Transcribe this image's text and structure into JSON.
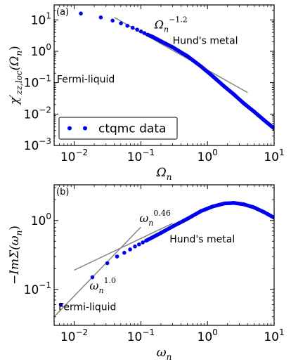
{
  "chart_data": [
    {
      "panel_label": "(a)",
      "type": "scatter",
      "xscale": "log",
      "yscale": "log",
      "xlim": [
        0.005,
        10
      ],
      "ylim": [
        0.001,
        30
      ],
      "x_ticks": [
        {
          "value": 0.01,
          "base": "10",
          "exp": "−2"
        },
        {
          "value": 0.1,
          "base": "10",
          "exp": "−1"
        },
        {
          "value": 1,
          "base": "10",
          "exp": "0"
        },
        {
          "value": 10,
          "base": "10",
          "exp": "1"
        }
      ],
      "y_ticks": [
        {
          "value": 0.001,
          "base": "10",
          "exp": "−3"
        },
        {
          "value": 0.01,
          "base": "10",
          "exp": "−2"
        },
        {
          "value": 0.1,
          "base": "10",
          "exp": "−1"
        },
        {
          "value": 1,
          "base": "10",
          "exp": "0"
        },
        {
          "value": 10,
          "base": "10",
          "exp": "1"
        }
      ],
      "xlabel": "Ω",
      "xlabel_sub": "n",
      "ylabel": "χ′",
      "ylabel_sub": "zz,loc",
      "ylabel_arg": "(Ω",
      "ylabel_arg_sub": "n",
      "ylabel_close": ")",
      "series": [
        {
          "name": "ctqmc data",
          "color": "#0000ee",
          "x": [
            0.0126,
            0.0251,
            0.0377,
            0.0503,
            0.0628,
            0.0754,
            0.088,
            0.1005,
            0.113,
            0.126,
            0.15,
            0.2,
            0.3,
            0.5,
            0.8,
            1.2,
            1.8,
            2.5,
            3.5,
            5,
            7,
            10
          ],
          "y": [
            16,
            12,
            9.5,
            7.8,
            6.5,
            5.6,
            4.9,
            4.3,
            3.8,
            3.4,
            2.9,
            2.1,
            1.35,
            0.7,
            0.33,
            0.16,
            0.075,
            0.042,
            0.022,
            0.012,
            0.0065,
            0.0035
          ]
        }
      ],
      "fit_lines": [
        {
          "color": "#808080",
          "x": [
            0.04,
            4.0
          ],
          "y": [
            12,
            0.0483
          ]
        }
      ],
      "annotations": [
        {
          "text": "Ω",
          "sub": "n",
          "sup": "−1.2",
          "x": 0.16,
          "y": 5.3
        },
        {
          "text": "Hund's metal",
          "x": 0.3,
          "y": 1.7
        },
        {
          "text": "Fermi-liquid",
          "x": 0.0055,
          "y": 0.1
        }
      ],
      "legend": {
        "placement": "lower-left",
        "label": "ctqmc data"
      }
    },
    {
      "panel_label": "(b)",
      "type": "scatter",
      "xscale": "log",
      "yscale": "log",
      "xlim": [
        0.005,
        10
      ],
      "ylim": [
        0.03,
        3.3
      ],
      "x_ticks": [
        {
          "value": 0.01,
          "base": "10",
          "exp": "−2"
        },
        {
          "value": 0.1,
          "base": "10",
          "exp": "−1"
        },
        {
          "value": 1,
          "base": "10",
          "exp": "0"
        },
        {
          "value": 10,
          "base": "10",
          "exp": "1"
        }
      ],
      "y_ticks": [
        {
          "value": 0.1,
          "base": "10",
          "exp": "−1"
        },
        {
          "value": 1,
          "base": "10",
          "exp": "0"
        }
      ],
      "xlabel": "ω",
      "xlabel_sub": "n",
      "ylabel": "−ImΣ(ω",
      "ylabel_sub": "n",
      "ylabel_close": ")",
      "series": [
        {
          "name": "ctqmc data",
          "color": "#0000ee",
          "x": [
            0.0063,
            0.0188,
            0.0314,
            0.044,
            0.0565,
            0.069,
            0.0817,
            0.094,
            0.107,
            0.12,
            0.15,
            0.2,
            0.3,
            0.5,
            0.8,
            1.2,
            1.8,
            2.5,
            3.5,
            5,
            7,
            10
          ],
          "y": [
            0.06,
            0.15,
            0.24,
            0.3,
            0.34,
            0.38,
            0.42,
            0.45,
            0.48,
            0.51,
            0.57,
            0.66,
            0.82,
            1.06,
            1.37,
            1.6,
            1.77,
            1.8,
            1.72,
            1.55,
            1.33,
            1.1
          ]
        }
      ],
      "fit_lines": [
        {
          "color": "#808080",
          "x": [
            0.005,
            0.1
          ],
          "y": [
            0.04,
            0.8
          ]
        },
        {
          "color": "#808080",
          "x": [
            0.01,
            0.3
          ],
          "y": [
            0.19,
            0.91
          ]
        }
      ],
      "annotations": [
        {
          "text": "ω",
          "sub": "n",
          "sup": "0.46",
          "x": 0.095,
          "y": 0.95
        },
        {
          "text": "Hund's metal",
          "x": 0.27,
          "y": 0.48
        },
        {
          "text": "ω",
          "sub": "n",
          "sup": "1.0",
          "x": 0.017,
          "y": 0.1
        },
        {
          "text": "Fermi-liquid",
          "x": 0.0058,
          "y": 0.05
        }
      ]
    }
  ]
}
